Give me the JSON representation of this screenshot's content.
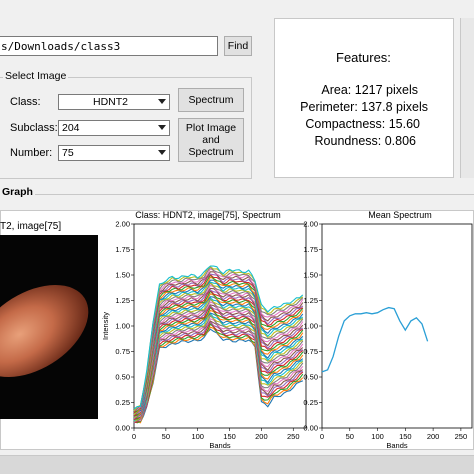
{
  "path": {
    "value": "s/Downloads/class3",
    "find_label": "Find"
  },
  "select_image": {
    "title": "Select Image",
    "class_label": "Class:",
    "class_value": "HDNT2",
    "subclass_label": "Subclass:",
    "subclass_value": "204",
    "number_label": "Number:",
    "number_value": "75",
    "spectrum_button": "Spectrum",
    "plot_button_line1": "Plot Image",
    "plot_button_line2": "and",
    "plot_button_line3": "Spectrum"
  },
  "features": {
    "title": "Features:",
    "area": "Area:   1217 pixels",
    "perimeter": "Perimeter:   137.8 pixels",
    "compactness": "Compactness: 15.60",
    "roundness": "Roundness:  0.806"
  },
  "graph": {
    "title": "Graph",
    "image_title": "T2, image[75]"
  },
  "chart_data": [
    {
      "type": "line",
      "title": "Class: HDNT2, image[75], Spectrum",
      "xlabel": "Bands",
      "ylabel": "Intensity",
      "xlim": [
        0,
        270
      ],
      "ylim": [
        0,
        2.0
      ],
      "xticks": [
        "0",
        "50",
        "100",
        "150",
        "200",
        "250"
      ],
      "yticks": [
        "0.00",
        "0.25",
        "0.50",
        "0.75",
        "1.00",
        "1.25",
        "1.50",
        "1.75",
        "2.00"
      ],
      "x": [
        0,
        10,
        20,
        30,
        40,
        50,
        60,
        70,
        80,
        90,
        100,
        110,
        120,
        130,
        140,
        150,
        160,
        170,
        180,
        190,
        200,
        210,
        220,
        230,
        240,
        250,
        260,
        270
      ],
      "series_range": {
        "count": 40,
        "lower": [
          0.05,
          0.06,
          0.2,
          0.45,
          0.78,
          0.8,
          0.82,
          0.84,
          0.85,
          0.85,
          0.86,
          0.88,
          0.98,
          0.92,
          0.87,
          0.86,
          0.85,
          0.86,
          0.86,
          0.8,
          0.25,
          0.22,
          0.3,
          0.32,
          0.35,
          0.4,
          0.45,
          0.5
        ],
        "upper": [
          0.18,
          0.22,
          0.55,
          1.05,
          1.4,
          1.45,
          1.48,
          1.47,
          1.49,
          1.5,
          1.48,
          1.52,
          1.6,
          1.57,
          1.52,
          1.55,
          1.55,
          1.53,
          1.54,
          1.45,
          1.2,
          1.15,
          1.18,
          1.2,
          1.22,
          1.25,
          1.28,
          1.35
        ]
      }
    },
    {
      "type": "line",
      "title": "Mean Spectrum",
      "xlabel": "Bands",
      "ylabel": "Intensity",
      "xlim": [
        0,
        270
      ],
      "ylim": [
        0,
        2.0
      ],
      "xticks": [
        "0",
        "50",
        "100",
        "150",
        "200",
        "250"
      ],
      "yticks": [
        "0.00",
        "0.25",
        "0.50",
        "0.75",
        "1.00",
        "1.25",
        "1.50",
        "1.75",
        "2.00"
      ],
      "x": [
        0,
        10,
        20,
        30,
        40,
        50,
        60,
        70,
        80,
        90,
        100,
        110,
        120,
        130,
        140,
        150,
        160,
        170,
        180,
        190
      ],
      "y": [
        0.55,
        0.57,
        0.7,
        0.9,
        1.05,
        1.1,
        1.12,
        1.12,
        1.13,
        1.12,
        1.13,
        1.16,
        1.18,
        1.17,
        1.05,
        0.96,
        1.05,
        1.08,
        1.02,
        0.85
      ],
      "color": "#2a9fd6"
    }
  ]
}
